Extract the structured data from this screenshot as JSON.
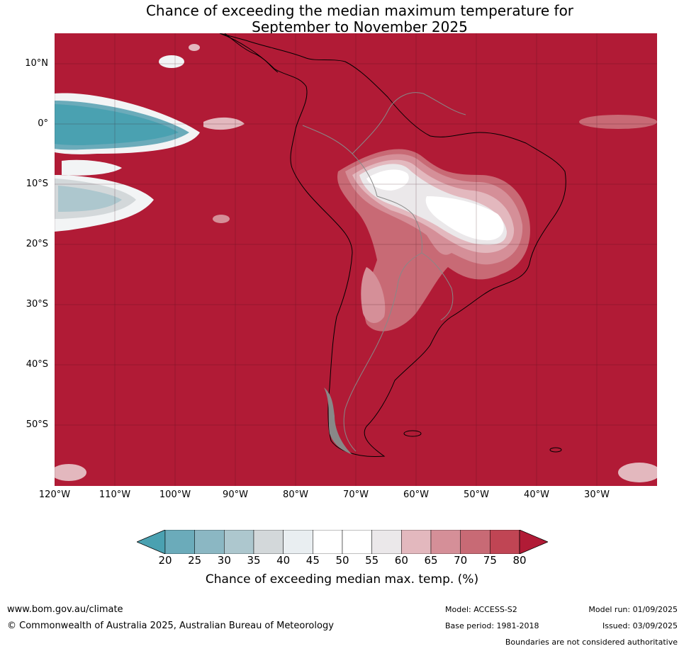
{
  "title_line1": "Chance of exceeding the median maximum temperature for",
  "title_line2": "September to November 2025",
  "map": {
    "lat_labels": [
      "10°N",
      "0°",
      "10°S",
      "20°S",
      "30°S",
      "40°S",
      "50°S"
    ],
    "lon_labels": [
      "120°W",
      "110°W",
      "100°W",
      "90°W",
      "80°W",
      "70°W",
      "60°W",
      "50°W",
      "40°W",
      "30°W"
    ],
    "dominant_color": "#b11b36"
  },
  "colorbar": {
    "ticks": [
      "20",
      "25",
      "30",
      "35",
      "40",
      "45",
      "50",
      "55",
      "60",
      "65",
      "70",
      "75",
      "80"
    ],
    "colors": [
      "#4aa1b1",
      "#6babba",
      "#8bb7c3",
      "#adc7ce",
      "#d3d8da",
      "#e9eef1",
      "#ffffff",
      "#ffffff",
      "#ebe8ea",
      "#e3b8be",
      "#d58f98",
      "#c86a75",
      "#c04554",
      "#b11b36"
    ],
    "label": "Chance of exceeding median max. temp. (%)"
  },
  "footer": {
    "website": "www.bom.gov.au/climate",
    "copyright": "© Commonwealth of Australia 2025, Australian Bureau of Meteorology",
    "model": "Model: ACCESS-S2",
    "base_period": "Base period: 1981-2018",
    "model_run": "Model run: 01/09/2025",
    "issued": "Issued: 03/09/2025",
    "disclaimer": "Boundaries are not considered authoritative"
  }
}
